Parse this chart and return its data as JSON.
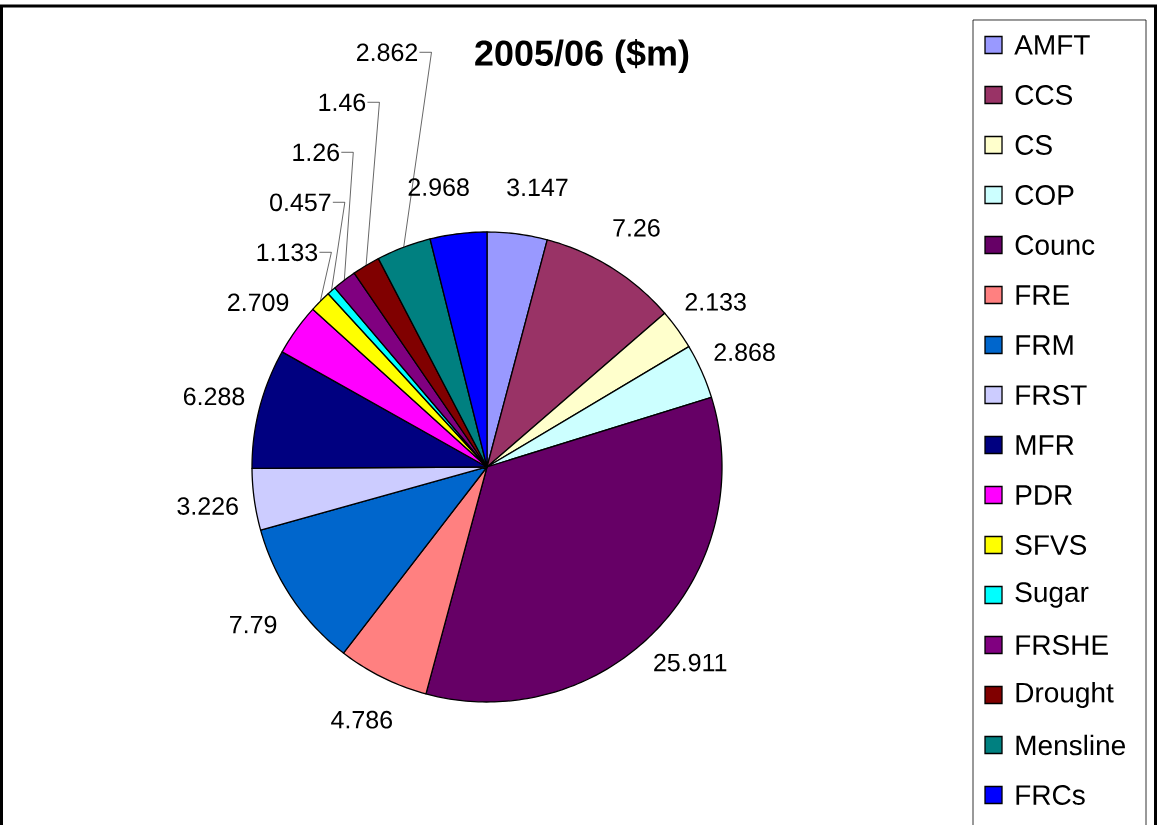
{
  "chart_data": {
    "type": "pie",
    "title": "2005/06 ($m)",
    "categories": [
      "AMFT",
      "CCS",
      "CS",
      "COP",
      "Counc",
      "FRE",
      "FRM",
      "FRST",
      "MFR",
      "PDR",
      "SFVS",
      "Sugar",
      "FRSHE",
      "Drought",
      "Mensline",
      "FRCs"
    ],
    "values": [
      3.147,
      7.26,
      2.133,
      2.868,
      25.911,
      4.786,
      7.79,
      3.226,
      6.288,
      2.709,
      1.133,
      0.457,
      1.26,
      1.46,
      2.862,
      2.968
    ],
    "colors": [
      "#9999ff",
      "#993366",
      "#ffffcc",
      "#ccffff",
      "#660066",
      "#ff8080",
      "#0066cc",
      "#ccccff",
      "#000080",
      "#ff00ff",
      "#ffff00",
      "#00ffff",
      "#800080",
      "#800000",
      "#008080",
      "#0000ff"
    ],
    "data_labels": true,
    "legend": "right"
  }
}
